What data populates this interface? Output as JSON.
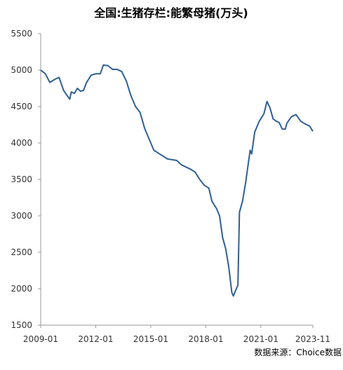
{
  "chart_data": {
    "type": "line",
    "title": "全国:生猪存栏:能繁母猪(万头)",
    "source": "数据来源：Choice数据",
    "x": [
      "2009-01",
      "2009-04",
      "2009-07",
      "2009-10",
      "2010-01",
      "2010-04",
      "2010-08",
      "2010-09",
      "2010-11",
      "2011-01",
      "2011-03",
      "2011-05",
      "2011-07",
      "2011-10",
      "2012-01",
      "2012-04",
      "2012-06",
      "2012-09",
      "2012-12",
      "2013-03",
      "2013-06",
      "2013-09",
      "2013-12",
      "2014-03",
      "2014-06",
      "2014-09",
      "2014-12",
      "2015-03",
      "2015-06",
      "2015-09",
      "2015-12",
      "2016-03",
      "2016-06",
      "2016-09",
      "2016-12",
      "2017-03",
      "2017-06",
      "2017-09",
      "2017-12",
      "2018-03",
      "2018-05",
      "2018-08",
      "2018-10",
      "2018-12",
      "2019-02",
      "2019-04",
      "2019-06",
      "2019-07",
      "2019-09",
      "2019-10",
      "2019-11",
      "2020-01",
      "2020-03",
      "2020-06",
      "2020-07",
      "2020-09",
      "2020-12",
      "2021-03",
      "2021-05",
      "2021-07",
      "2021-09",
      "2021-11",
      "2022-01",
      "2022-03",
      "2022-05",
      "2022-06",
      "2022-09",
      "2022-12",
      "2023-03",
      "2023-06",
      "2023-09",
      "2023-11"
    ],
    "series": [
      {
        "name": "能繁母猪",
        "color": "#2f5f97",
        "values": [
          5000,
          4950,
          4830,
          4870,
          4900,
          4720,
          4600,
          4700,
          4680,
          4750,
          4710,
          4720,
          4830,
          4930,
          4950,
          4950,
          5070,
          5060,
          5010,
          5010,
          4980,
          4850,
          4650,
          4500,
          4420,
          4200,
          4050,
          3900,
          3860,
          3820,
          3780,
          3770,
          3760,
          3700,
          3670,
          3640,
          3600,
          3500,
          3420,
          3380,
          3200,
          3100,
          3000,
          2700,
          2550,
          2300,
          1950,
          1900,
          2000,
          2050,
          3050,
          3200,
          3450,
          3900,
          3850,
          4150,
          4300,
          4400,
          4570,
          4480,
          4330,
          4300,
          4280,
          4190,
          4190,
          4270,
          4360,
          4390,
          4300,
          4260,
          4230,
          4160
        ]
      }
    ],
    "xlim": [
      "2009-01",
      "2023-11"
    ],
    "xticks": [
      "2009-01",
      "2012-01",
      "2015-01",
      "2018-01",
      "2021-01",
      "2023-11"
    ],
    "ylim": [
      1500,
      5500
    ],
    "yticks": [
      1500,
      2000,
      2500,
      3000,
      3500,
      4000,
      4500,
      5000,
      5500
    ],
    "grid": false
  }
}
